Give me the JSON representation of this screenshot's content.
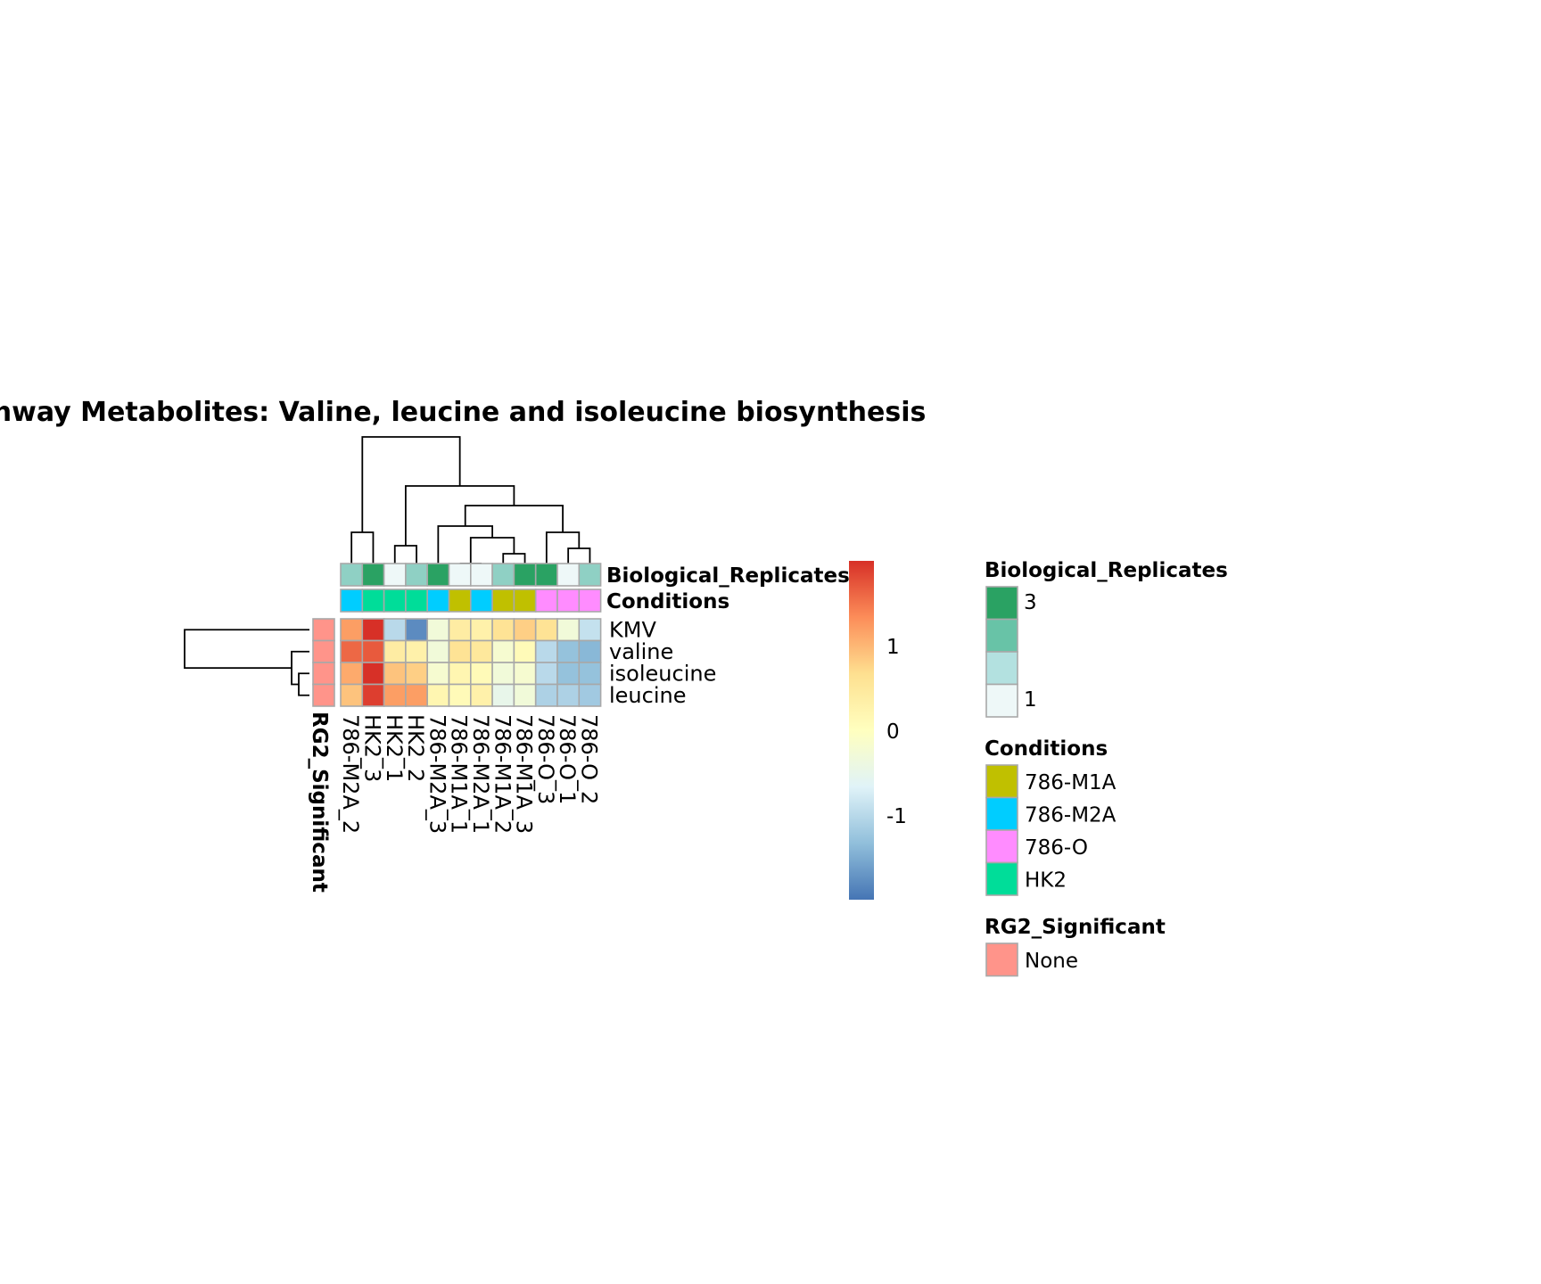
{
  "chart_data": {
    "type": "heatmap",
    "title": "Pathway  Metabolites:  Valine, leucine and isoleucine biosynthesis",
    "columns": [
      "786-M2A_2",
      "HK2_3",
      "HK2_1",
      "HK2_2",
      "786-M2A_3",
      "786-M1A_1",
      "786-M2A_1",
      "786-M1A_2",
      "786-M1A_3",
      "786-O_3",
      "786-O_1",
      "786-O_2"
    ],
    "rows": [
      "KMV",
      "valine",
      "isoleucine",
      "leucine"
    ],
    "values": [
      [
        1.2,
        2.0,
        -1.0,
        -1.8,
        -0.3,
        0.4,
        0.3,
        0.6,
        0.8,
        0.6,
        -0.3,
        -0.9
      ],
      [
        1.6,
        1.7,
        0.4,
        0.3,
        -0.3,
        0.6,
        0.5,
        -0.2,
        0.1,
        -1.0,
        -1.3,
        -1.4
      ],
      [
        1.1,
        2.0,
        0.9,
        0.8,
        -0.2,
        0.2,
        0.1,
        -0.3,
        -0.2,
        -1.0,
        -1.3,
        -1.3
      ],
      [
        0.9,
        1.9,
        1.2,
        1.2,
        0.2,
        0.1,
        0.3,
        -0.5,
        -0.3,
        -1.1,
        -1.1,
        -1.2
      ]
    ],
    "column_annotations": {
      "Biological_Replicates": [
        2,
        3,
        1,
        2,
        3,
        1,
        1,
        2,
        3,
        3,
        1,
        2
      ],
      "Conditions": [
        "786-M2A",
        "HK2",
        "HK2",
        "HK2",
        "786-M2A",
        "786-M1A",
        "786-M2A",
        "786-M1A",
        "786-M1A",
        "786-O",
        "786-O",
        "786-O"
      ]
    },
    "row_annotations": {
      "RG2_Significant": [
        "None",
        "None",
        "None",
        "None"
      ]
    },
    "annotation_labels": {
      "replicates": "Biological_Replicates",
      "conditions": "Conditions",
      "significant": "RG2_Significant"
    },
    "colorbar": {
      "ticks": [
        1,
        0,
        -1
      ],
      "range": [
        -2,
        2
      ],
      "colors": [
        "#4575b4",
        "#91bfdb",
        "#e0f3f8",
        "#ffffbf",
        "#fee090",
        "#fc8d59",
        "#d73027"
      ]
    },
    "legends": {
      "replicates": {
        "title": "Biological_Replicates",
        "top_label": "3",
        "bottom_label": "1",
        "colors": [
          "#2aa263",
          "#68c3a7",
          "#b3e1e0",
          "#eef8f8"
        ]
      },
      "conditions": {
        "title": "Conditions",
        "items": [
          {
            "label": "786-M1A",
            "color": "#c0c000"
          },
          {
            "label": "786-M2A",
            "color": "#00cdff"
          },
          {
            "label": "786-O",
            "color": "#ff8cff"
          },
          {
            "label": "HK2",
            "color": "#00dd99"
          }
        ]
      },
      "significant": {
        "title": "RG2_Significant",
        "items": [
          {
            "label": "None",
            "color": "#ff948a"
          }
        ]
      }
    },
    "replicate_colors": {
      "1": "#eef8f8",
      "2": "#8fd0c4",
      "3": "#2aa263"
    },
    "dendrogram": "hierarchical clustering of rows and columns"
  }
}
